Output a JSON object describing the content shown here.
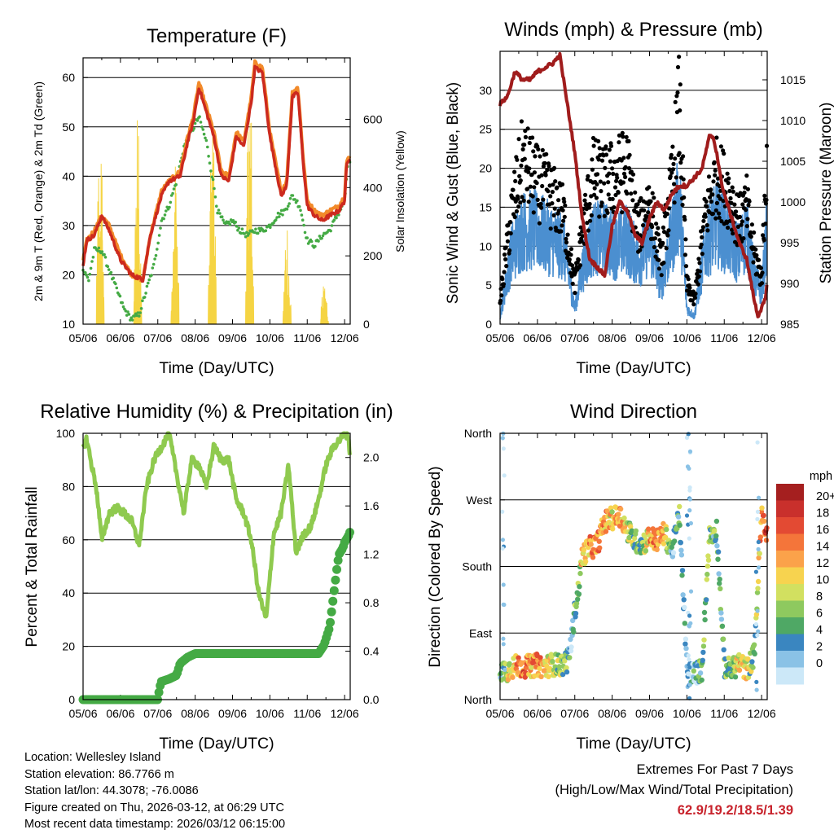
{
  "chart_data": [
    {
      "type": "line",
      "title": "Temperature (F)",
      "xlabel": "Time (Day/UTC)",
      "ylabel": "2m & 9m T (Red, Orange) & 2m Td (Green)",
      "y2label": "Solar Insolation (Yellow)",
      "x_ticks": [
        "05/06",
        "06/06",
        "07/06",
        "08/06",
        "09/06",
        "10/06",
        "11/06",
        "12/06"
      ],
      "ylim": [
        10,
        64
      ],
      "y_ticks": [
        "10",
        "20",
        "30",
        "40",
        "50",
        "60"
      ],
      "y2lim": [
        0,
        780
      ],
      "y2_ticks": [
        "0",
        "200",
        "400",
        "600"
      ],
      "series": [
        {
          "name": "2m T",
          "color": "#cc2a1e",
          "x": [
            0,
            0.1,
            0.3,
            0.5,
            0.7,
            1.0,
            1.3,
            1.6,
            1.8,
            2.1,
            2.3,
            2.6,
            2.8,
            2.95,
            3.1,
            3.3,
            3.5,
            3.7,
            3.9,
            4.1,
            4.3,
            4.5,
            4.6,
            4.8,
            5.0,
            5.15,
            5.3,
            5.45,
            5.6,
            5.75,
            5.9,
            6.0,
            6.2,
            6.4,
            6.6,
            6.85,
            7.0,
            7.05,
            7.15
          ],
          "values": [
            22,
            27,
            28,
            32,
            29,
            23,
            20,
            19,
            28,
            36,
            39,
            40,
            47,
            51,
            58,
            53,
            48,
            40,
            39,
            48,
            46,
            55,
            62,
            61,
            48,
            42,
            36,
            38,
            56,
            57,
            42,
            34,
            32,
            31,
            32,
            33,
            35,
            42,
            44
          ]
        },
        {
          "name": "9m T",
          "color": "#f28a2a",
          "x": [
            0,
            0.1,
            0.3,
            0.5,
            0.7,
            1.0,
            1.3,
            1.6,
            1.8,
            2.1,
            2.3,
            2.6,
            2.8,
            2.95,
            3.1,
            3.3,
            3.5,
            3.7,
            3.9,
            4.1,
            4.3,
            4.5,
            4.6,
            4.8,
            5.0,
            5.15,
            5.3,
            5.45,
            5.6,
            5.75,
            5.9,
            6.0,
            6.2,
            6.4,
            6.6,
            6.85,
            7.0,
            7.05,
            7.15
          ],
          "values": [
            23,
            27,
            29,
            32,
            30,
            24,
            20,
            19,
            28,
            37,
            39,
            41,
            48,
            52,
            59,
            54,
            49,
            41,
            40,
            49,
            47,
            56,
            63,
            62,
            49,
            43,
            37,
            39,
            57,
            58,
            43,
            35,
            33,
            32,
            33,
            34,
            36,
            43,
            44
          ]
        },
        {
          "name": "2m Td",
          "color": "#44aa44",
          "x": [
            0,
            0.15,
            0.3,
            0.5,
            0.7,
            0.9,
            1.1,
            1.3,
            1.5,
            1.7,
            1.9,
            2.1,
            2.3,
            2.5,
            2.7,
            2.9,
            3.1,
            3.3,
            3.5,
            3.6,
            3.8,
            4.0,
            4.2,
            4.4,
            4.6,
            4.8,
            5.0,
            5.2,
            5.4,
            5.6,
            5.8,
            6.0,
            6.2,
            6.4,
            6.6,
            6.8,
            7.0,
            7.1
          ],
          "values": [
            21,
            19,
            25,
            25,
            21,
            17,
            13,
            11,
            12,
            17,
            22,
            31,
            34,
            39,
            46,
            49,
            52,
            47,
            38,
            33,
            30,
            31,
            29,
            28,
            29,
            29,
            30,
            32,
            33,
            36,
            34,
            27,
            26,
            28,
            29,
            32,
            35,
            43
          ]
        },
        {
          "name": "Solar Insolation",
          "color": "#f5d443",
          "axis": "right",
          "peaks_x": [
            0.45,
            1.45,
            2.45,
            3.45,
            4.45,
            5.45,
            6.45
          ],
          "peaks_values": [
            590,
            660,
            520,
            640,
            760,
            300,
            120
          ]
        }
      ]
    },
    {
      "type": "scatter",
      "title": "Winds (mph) & Pressure (mb)",
      "xlabel": "Time (Day/UTC)",
      "ylabel": "Sonic Wind & Gust (Blue, Black)",
      "y2label": "Station Pressure (Maroon)",
      "x_ticks": [
        "05/06",
        "06/06",
        "07/06",
        "08/06",
        "09/06",
        "10/06",
        "11/06",
        "12/06"
      ],
      "ylim": [
        0,
        35
      ],
      "y_ticks": [
        "0",
        "5",
        "10",
        "15",
        "20",
        "25",
        "30"
      ],
      "y2lim": [
        985,
        1018.5
      ],
      "y2_ticks": [
        "985",
        "990",
        "995",
        "1000",
        "1005",
        "1010",
        "1015"
      ],
      "series": [
        {
          "name": "Sonic Wind",
          "color": "#4b8fd0",
          "x": [
            0,
            0.3,
            0.6,
            1.0,
            1.3,
            1.7,
            2.0,
            2.2,
            2.5,
            2.8,
            3.1,
            3.4,
            3.7,
            4.0,
            4.3,
            4.6,
            4.8,
            5.0,
            5.2,
            5.5,
            5.8,
            6.1,
            6.4,
            6.6,
            6.8,
            7.0,
            7.15
          ],
          "values": [
            1,
            9,
            12,
            12,
            11,
            10,
            2,
            7,
            11,
            11,
            10,
            11,
            8,
            11,
            5,
            11,
            16,
            2,
            1,
            10,
            13,
            11,
            9,
            12,
            6,
            4,
            12
          ]
        },
        {
          "name": "Gust",
          "color": "#000000",
          "x": [
            0,
            0.3,
            0.6,
            1.0,
            1.3,
            1.7,
            2.0,
            2.2,
            2.5,
            2.8,
            3.1,
            3.4,
            3.7,
            4.0,
            4.3,
            4.6,
            4.8,
            5.0,
            5.2,
            5.5,
            5.8,
            6.1,
            6.4,
            6.6,
            6.8,
            7.0,
            7.15
          ],
          "values": [
            3,
            14,
            21,
            18,
            17,
            14,
            5,
            12,
            19,
            18,
            19,
            20,
            12,
            16,
            8,
            18,
            28,
            5,
            3,
            14,
            19,
            17,
            13,
            15,
            9,
            6,
            22
          ]
        },
        {
          "name": "Station Pressure",
          "color": "#a01c1c",
          "axis": "right",
          "x": [
            0,
            0.2,
            0.4,
            0.6,
            0.8,
            1.0,
            1.2,
            1.4,
            1.6,
            1.8,
            2.0,
            2.2,
            2.4,
            2.6,
            2.8,
            3.0,
            3.2,
            3.4,
            3.6,
            3.8,
            4.0,
            4.2,
            4.4,
            4.6,
            4.8,
            5.0,
            5.2,
            5.4,
            5.6,
            5.7,
            5.8,
            5.9,
            6.0,
            6.2,
            6.4,
            6.6,
            6.8,
            6.9,
            7.0,
            7.1,
            7.15
          ],
          "values": [
            1012,
            1013,
            1016,
            1015,
            1015,
            1016,
            1016.5,
            1017,
            1018,
            1012,
            1006,
            998,
            993,
            992,
            991,
            997,
            1000,
            999,
            996,
            995,
            998,
            1000,
            999,
            1001,
            1002,
            1002,
            1003,
            1004,
            1008,
            1008,
            1006,
            1003,
            1001,
            998,
            995,
            993,
            988,
            986,
            987,
            988,
            990
          ]
        }
      ]
    },
    {
      "type": "line",
      "title": "Relative Humidity (%) & Precipitation (in)",
      "xlabel": "Time (Day/UTC)",
      "ylabel": "Percent & Total Rainfall",
      "x_ticks": [
        "05/06",
        "06/06",
        "07/06",
        "08/06",
        "09/06",
        "10/06",
        "11/06",
        "12/06"
      ],
      "ylim": [
        0,
        100
      ],
      "y_ticks": [
        "0",
        "20",
        "40",
        "60",
        "80",
        "100"
      ],
      "y2lim": [
        0,
        2.2
      ],
      "y2_ticks": [
        "0.0",
        "0.4",
        "0.8",
        "1.2",
        "1.6",
        "2.0"
      ],
      "series": [
        {
          "name": "Relative Humidity",
          "color": "#8fca4f",
          "x": [
            0,
            0.1,
            0.2,
            0.35,
            0.5,
            0.7,
            0.9,
            1.1,
            1.3,
            1.5,
            1.7,
            1.9,
            2.1,
            2.3,
            2.5,
            2.7,
            2.9,
            3.1,
            3.3,
            3.5,
            3.7,
            3.9,
            4.1,
            4.3,
            4.5,
            4.7,
            4.9,
            5.1,
            5.3,
            5.5,
            5.7,
            5.9,
            6.1,
            6.3,
            6.5,
            6.7,
            6.9,
            7.0,
            7.1,
            7.15
          ],
          "values": [
            95,
            98,
            90,
            80,
            60,
            70,
            72,
            70,
            67,
            58,
            80,
            90,
            95,
            100,
            85,
            70,
            90,
            88,
            80,
            95,
            90,
            90,
            75,
            70,
            60,
            40,
            30,
            62,
            70,
            88,
            55,
            62,
            65,
            75,
            88,
            95,
            98,
            100,
            99,
            90
          ]
        },
        {
          "name": "Total Precipitation",
          "color": "#44aa44",
          "axis": "right",
          "x": [
            0,
            0.5,
            1.0,
            1.5,
            2.0,
            2.05,
            2.1,
            2.3,
            2.5,
            2.6,
            2.8,
            3.0,
            3.5,
            4.0,
            4.5,
            5.0,
            5.5,
            6.0,
            6.3,
            6.45,
            6.6,
            6.7,
            6.8,
            6.85,
            6.95,
            7.0,
            7.1,
            7.15
          ],
          "values": [
            0,
            0,
            0,
            0,
            0,
            0.1,
            0.15,
            0.17,
            0.2,
            0.3,
            0.35,
            0.38,
            0.38,
            0.38,
            0.38,
            0.38,
            0.38,
            0.38,
            0.38,
            0.45,
            0.6,
            0.85,
            1.1,
            1.2,
            1.25,
            1.3,
            1.35,
            1.39
          ]
        }
      ]
    },
    {
      "type": "scatter",
      "title": "Wind Direction",
      "xlabel": "Time (Day/UTC)",
      "ylabel": "Direction (Colored By Speed)",
      "x_ticks": [
        "05/06",
        "06/06",
        "07/06",
        "08/06",
        "09/06",
        "10/06",
        "11/06",
        "12/06"
      ],
      "ylim": [
        0,
        360
      ],
      "y_ticks": [
        "North",
        "East",
        "South",
        "West",
        "North"
      ],
      "legend_title": "mph",
      "legend_labels": [
        "20+",
        "18",
        "16",
        "14",
        "12",
        "10",
        "8",
        "6",
        "4",
        "2",
        "0"
      ],
      "legend_colors": [
        "#a51f1f",
        "#c9302c",
        "#e34a33",
        "#f4753a",
        "#fba24a",
        "#f7d34f",
        "#d2e060",
        "#8ec95f",
        "#4fa865",
        "#3a86c0",
        "#8ac2e6",
        "#cce8f8"
      ],
      "x": [
        0,
        0.2,
        0.4,
        0.6,
        0.8,
        1.0,
        1.2,
        1.4,
        1.6,
        1.8,
        1.9,
        2.0,
        2.1,
        2.2,
        2.4,
        2.6,
        2.8,
        3.0,
        3.2,
        3.4,
        3.6,
        3.8,
        4.0,
        4.2,
        4.4,
        4.6,
        4.8,
        5.0,
        5.2,
        5.4,
        5.6,
        5.8,
        6.0,
        6.2,
        6.4,
        6.6,
        6.8,
        7.0,
        7.1
      ],
      "values": [
        40,
        40,
        45,
        45,
        45,
        47,
        44,
        48,
        46,
        52,
        75,
        120,
        150,
        195,
        205,
        210,
        240,
        245,
        250,
        230,
        215,
        210,
        220,
        215,
        225,
        200,
        250,
        40,
        35,
        40,
        220,
        230,
        45,
        40,
        50,
        40,
        60,
        250,
        230
      ],
      "speeds": [
        4,
        10,
        14,
        16,
        14,
        16,
        12,
        10,
        8,
        6,
        4,
        6,
        8,
        12,
        14,
        16,
        14,
        12,
        16,
        10,
        8,
        6,
        14,
        16,
        12,
        4,
        6,
        2,
        4,
        6,
        8,
        4,
        6,
        8,
        12,
        10,
        6,
        16,
        18
      ]
    }
  ],
  "info": {
    "location": "Location: Wellesley Island",
    "elevation": "Station elevation: 86.7766 m",
    "latlon": "Station lat/lon: 44.3078; -76.0086",
    "created": "Figure created on Thu, 2026-03-12, at 06:29 UTC",
    "recent": "Most recent data timestamp: 2026/03/12 06:15:00"
  },
  "extremes": {
    "title": "Extremes For Past 7 Days",
    "subtitle": "(High/Low/Max Wind/Total Precipitation)",
    "values": "62.9/19.2/18.5/1.39",
    "color": "#c8232c"
  }
}
